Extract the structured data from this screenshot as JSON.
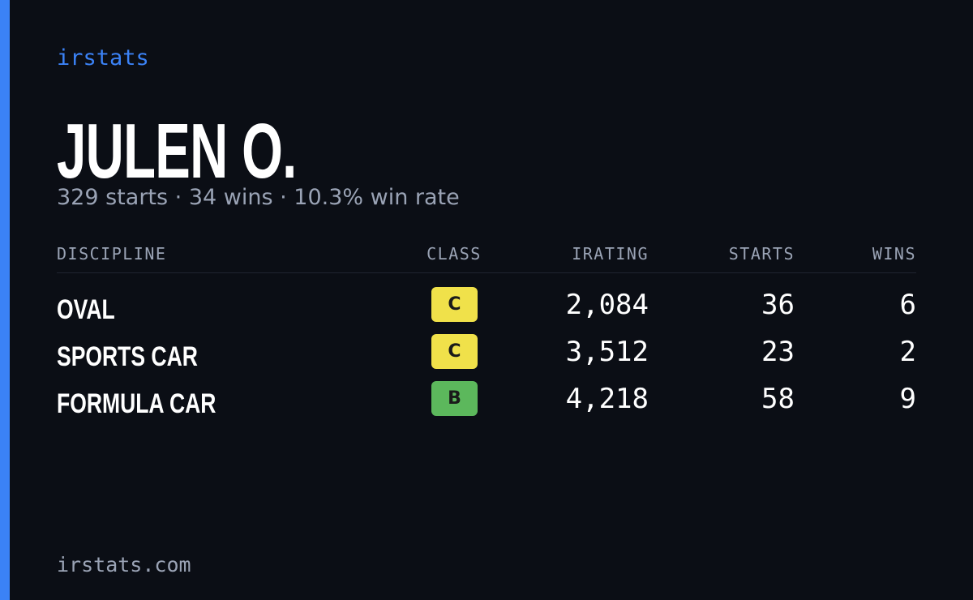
{
  "brand": "irstats",
  "driver": {
    "name": "JULEN O.",
    "summary": "329 starts · 34 wins · 10.3% win rate"
  },
  "table": {
    "headers": [
      "DISCIPLINE",
      "CLASS",
      "IRATING",
      "STARTS",
      "WINS"
    ],
    "rows": [
      {
        "discipline": "OVAL",
        "class": "C",
        "class_color": "#f0e14a",
        "irating": "2,084",
        "starts": 36,
        "wins": 6
      },
      {
        "discipline": "SPORTS CAR",
        "class": "C",
        "class_color": "#f0e14a",
        "irating": "3,512",
        "starts": 23,
        "wins": 2
      },
      {
        "discipline": "FORMULA CAR",
        "class": "B",
        "class_color": "#5cb85c",
        "irating": "4,218",
        "starts": 58,
        "wins": 9
      }
    ]
  },
  "footer": "irstats.com"
}
